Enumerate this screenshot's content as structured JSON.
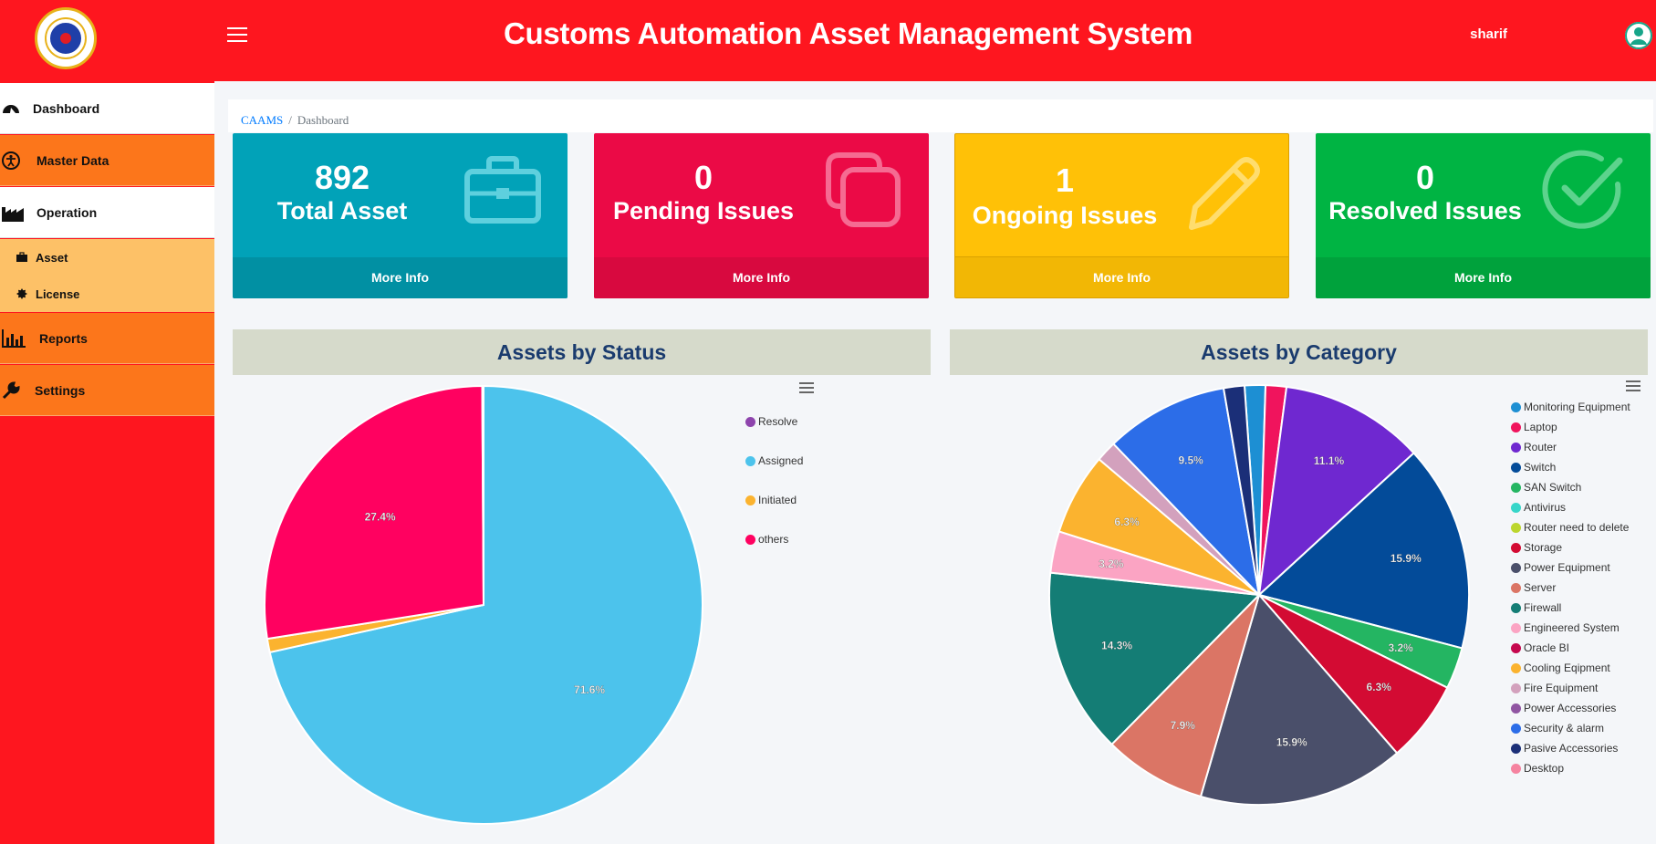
{
  "header": {
    "title": "Customs Automation Asset Management System",
    "username": "sharif"
  },
  "sidebar": {
    "items": [
      {
        "label": "Dashboard"
      },
      {
        "label": "Master Data"
      },
      {
        "label": "Operation"
      },
      {
        "label": "Reports"
      },
      {
        "label": "Settings"
      }
    ],
    "subitems": [
      {
        "label": "Asset"
      },
      {
        "label": "License"
      }
    ]
  },
  "breadcrumb": {
    "root": "CAAMS",
    "separator": "/",
    "current": "Dashboard"
  },
  "cards": [
    {
      "value": "892",
      "label": "Total Asset",
      "link": "More Info",
      "color": "#01a2b8",
      "icon": "briefcase-icon"
    },
    {
      "value": "0",
      "label": "Pending Issues",
      "link": "More Info",
      "color": "#eb0a46",
      "icon": "copy-icon"
    },
    {
      "value": "1",
      "label": "Ongoing Issues",
      "link": "More Info",
      "color": "#ffc107",
      "icon": "pencil-icon"
    },
    {
      "value": "0",
      "label": "Resolved Issues",
      "link": "More Info",
      "color": "#00b443",
      "icon": "check-circle-icon"
    }
  ],
  "chart_data": [
    {
      "type": "pie",
      "title": "Assets by Status",
      "slices": [
        {
          "name": "Assigned",
          "value": 71.6,
          "color": "#4cc3ec",
          "label": "71.6%"
        },
        {
          "name": "Initiated",
          "value": 1.0,
          "color": "#fbb32f",
          "label": ""
        },
        {
          "name": "others",
          "value": 27.4,
          "color": "#ff0160",
          "label": "27.4%"
        },
        {
          "name": "Resolve",
          "value": 0.1,
          "color": "#8e44ad",
          "label": ""
        }
      ],
      "legend": [
        "Resolve",
        "Assigned",
        "Initiated",
        "others"
      ],
      "legend_position": "right"
    },
    {
      "type": "pie",
      "title": "Assets by Category",
      "slices": [
        {
          "name": "Monitoring Equipment",
          "value": 1.6,
          "color": "#1d8fd3",
          "label": ""
        },
        {
          "name": "Laptop",
          "value": 1.6,
          "color": "#f0145d",
          "label": ""
        },
        {
          "name": "Router",
          "value": 11.1,
          "color": "#6f28d0",
          "label": "11.1%"
        },
        {
          "name": "Switch",
          "value": 15.9,
          "color": "#034b99",
          "label": "15.9%"
        },
        {
          "name": "SAN Switch",
          "value": 3.2,
          "color": "#24b562",
          "label": "3.2%"
        },
        {
          "name": "Antivirus",
          "value": 0,
          "color": "#37d6c9",
          "label": ""
        },
        {
          "name": "Router need to delete",
          "value": 0,
          "color": "#bcd62e",
          "label": ""
        },
        {
          "name": "Storage",
          "value": 6.3,
          "color": "#d30b33",
          "label": "6.3%"
        },
        {
          "name": "Power Equipment",
          "value": 15.9,
          "color": "#4a4f6a",
          "label": "15.9%"
        },
        {
          "name": "Server",
          "value": 7.9,
          "color": "#db7565",
          "label": "7.9%"
        },
        {
          "name": "Firewall",
          "value": 14.3,
          "color": "#147d75",
          "label": "14.3%"
        },
        {
          "name": "Engineered System",
          "value": 3.2,
          "color": "#fba4c3",
          "label": "3.2%"
        },
        {
          "name": "Oracle BI",
          "value": 0,
          "color": "#c5084e",
          "label": ""
        },
        {
          "name": "Cooling Eqipment",
          "value": 6.3,
          "color": "#fbb32f",
          "label": "6.3%"
        },
        {
          "name": "Fire Equipment",
          "value": 1.6,
          "color": "#d3a1bd",
          "label": ""
        },
        {
          "name": "Power Accessories",
          "value": 0,
          "color": "#9055a2",
          "label": ""
        },
        {
          "name": "Security & alarm",
          "value": 9.5,
          "color": "#2c6de8",
          "label": "9.5%"
        },
        {
          "name": "Pasive Accessories",
          "value": 1.6,
          "color": "#1b2f78",
          "label": ""
        },
        {
          "name": "Desktop",
          "value": 0,
          "color": "#f583a0",
          "label": ""
        }
      ],
      "legend_position": "right"
    }
  ]
}
